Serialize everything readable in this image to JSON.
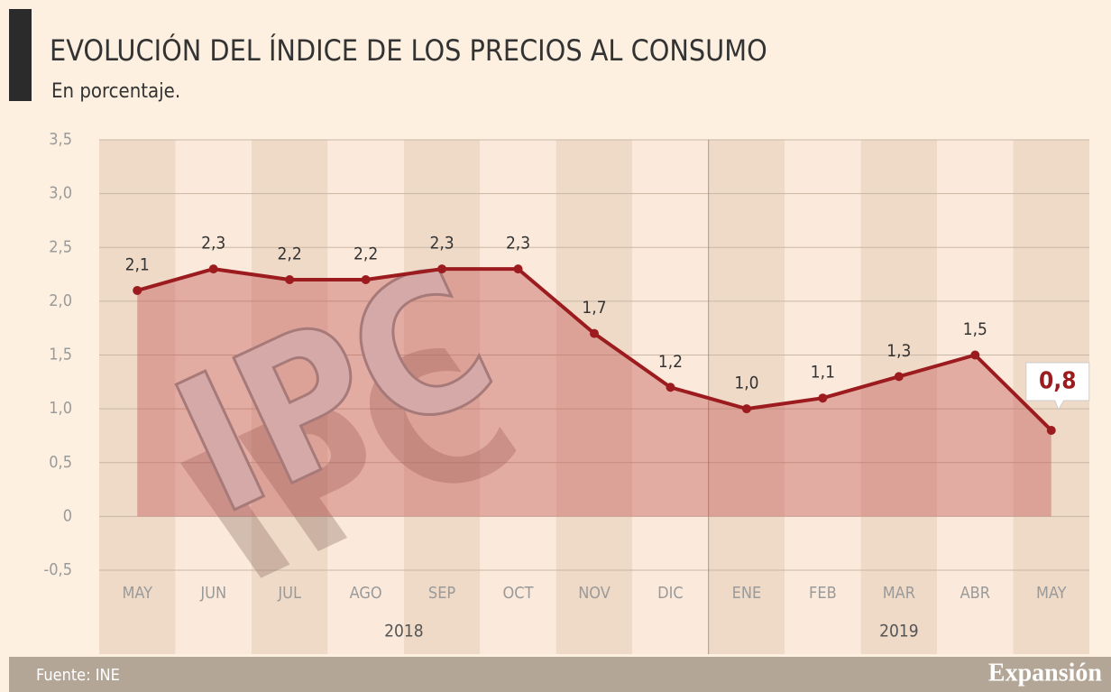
{
  "chart_data": {
    "type": "line",
    "title": "EVOLUCIÓN DEL ÍNDICE DE LOS PRECIOS AL CONSUMO",
    "subtitle": "En porcentaje.",
    "categories": [
      "MAY",
      "JUN",
      "JUL",
      "AGO",
      "SEP",
      "OCT",
      "NOV",
      "DIC",
      "ENE",
      "FEB",
      "MAR",
      "ABR",
      "MAY"
    ],
    "years": [
      {
        "label": "2018",
        "from": 0,
        "to": 7
      },
      {
        "label": "2019",
        "from": 8,
        "to": 12
      }
    ],
    "values": [
      2.1,
      2.3,
      2.2,
      2.2,
      2.3,
      2.3,
      1.7,
      1.2,
      1.0,
      1.1,
      1.3,
      1.5,
      0.8
    ],
    "value_labels": [
      "2,1",
      "2,3",
      "2,2",
      "2,2",
      "2,3",
      "2,3",
      "1,7",
      "1,2",
      "1,0",
      "1,1",
      "1,3",
      "1,5",
      "0,8"
    ],
    "color": "#9b1b1e",
    "ylim": [
      -0.5,
      3.5
    ],
    "yticks": [
      {
        "value": -0.5,
        "label": "-0,5"
      },
      0,
      {
        "value": 0.5,
        "label": "0,5"
      },
      {
        "value": 1.0,
        "label": "1,0"
      },
      {
        "value": 1.5,
        "label": "1,5"
      },
      {
        "value": 2.0,
        "label": "2,0"
      },
      {
        "value": 2.5,
        "label": "2,5"
      },
      {
        "value": 3.0,
        "label": "3,0"
      },
      {
        "value": 3.5,
        "label": "3,5"
      }
    ],
    "grid": true,
    "illustration": "IPC",
    "source": "Fuente: INE",
    "brand": "Expansión"
  }
}
